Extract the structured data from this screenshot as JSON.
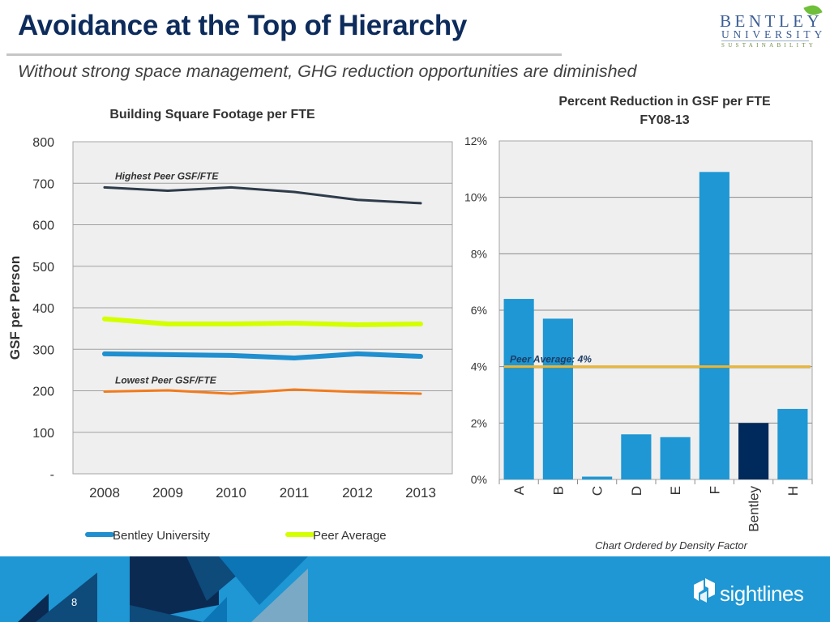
{
  "slide": {
    "title": "Avoidance at the Top of Hierarchy",
    "subtitle": "Without strong space management, GHG reduction opportunities are diminished",
    "logo": {
      "line1": "BENTLEY",
      "line2": "UNIVERSITY",
      "line3": "SUSTAINABILITY"
    },
    "footer": {
      "page_number": "8",
      "brand": "sightlines"
    },
    "colors": {
      "title": "#0d2c5c",
      "footer_bg": "#1e97d4",
      "bar": "#1e97d4",
      "bar_highlight": "#002a5c",
      "peer_line": "#e8b63a"
    }
  },
  "chart_data": [
    {
      "type": "line",
      "title": "Building Square Footage per FTE",
      "xlabel": "",
      "ylabel": "GSF per Person",
      "x": [
        "2008",
        "2009",
        "2010",
        "2011",
        "2012",
        "2013"
      ],
      "ylim": [
        0,
        800
      ],
      "yticks": [
        0,
        100,
        200,
        300,
        400,
        500,
        600,
        700,
        800
      ],
      "ytick_labels": [
        "-",
        "100",
        "200",
        "300",
        "400",
        "500",
        "600",
        "700",
        "800"
      ],
      "grid": true,
      "legend_position": "bottom",
      "series": [
        {
          "name": "Highest Peer GSF/FTE",
          "color": "#2e3b4a",
          "in_legend": false,
          "label_annotation": "Highest Peer GSF/FTE",
          "values": [
            690,
            682,
            690,
            679,
            660,
            652
          ]
        },
        {
          "name": "Peer Average",
          "color": "#d4ff00",
          "in_legend": true,
          "values": [
            373,
            361,
            361,
            363,
            359,
            361
          ]
        },
        {
          "name": "Bentley University",
          "color": "#1f8fcf",
          "in_legend": true,
          "values": [
            289,
            287,
            285,
            279,
            289,
            283
          ]
        },
        {
          "name": "Lowest Peer GSF/FTE",
          "color": "#f07b1d",
          "in_legend": false,
          "label_annotation": "Lowest Peer GSF/FTE",
          "values": [
            198,
            201,
            193,
            203,
            197,
            193
          ]
        }
      ],
      "legend": [
        "Bentley University",
        "Peer Average"
      ]
    },
    {
      "type": "bar",
      "title": "Percent Reduction in GSF per FTE",
      "title_line2": "FY08-13",
      "categories": [
        "A",
        "B",
        "C",
        "D",
        "E",
        "F",
        "Bentley",
        "H"
      ],
      "values": [
        6.4,
        5.7,
        0.1,
        1.6,
        1.5,
        10.9,
        2.0,
        2.5
      ],
      "highlight": "Bentley",
      "ylim": [
        0,
        12
      ],
      "yticks": [
        0,
        2,
        4,
        6,
        8,
        10,
        12
      ],
      "ytick_labels": [
        "0%",
        "2%",
        "4%",
        "6%",
        "8%",
        "10%",
        "12%"
      ],
      "grid": true,
      "reference_line": {
        "value": 4,
        "label": "Peer  Average:  4%"
      },
      "annotation": "Chart Ordered by Density Factor"
    }
  ]
}
